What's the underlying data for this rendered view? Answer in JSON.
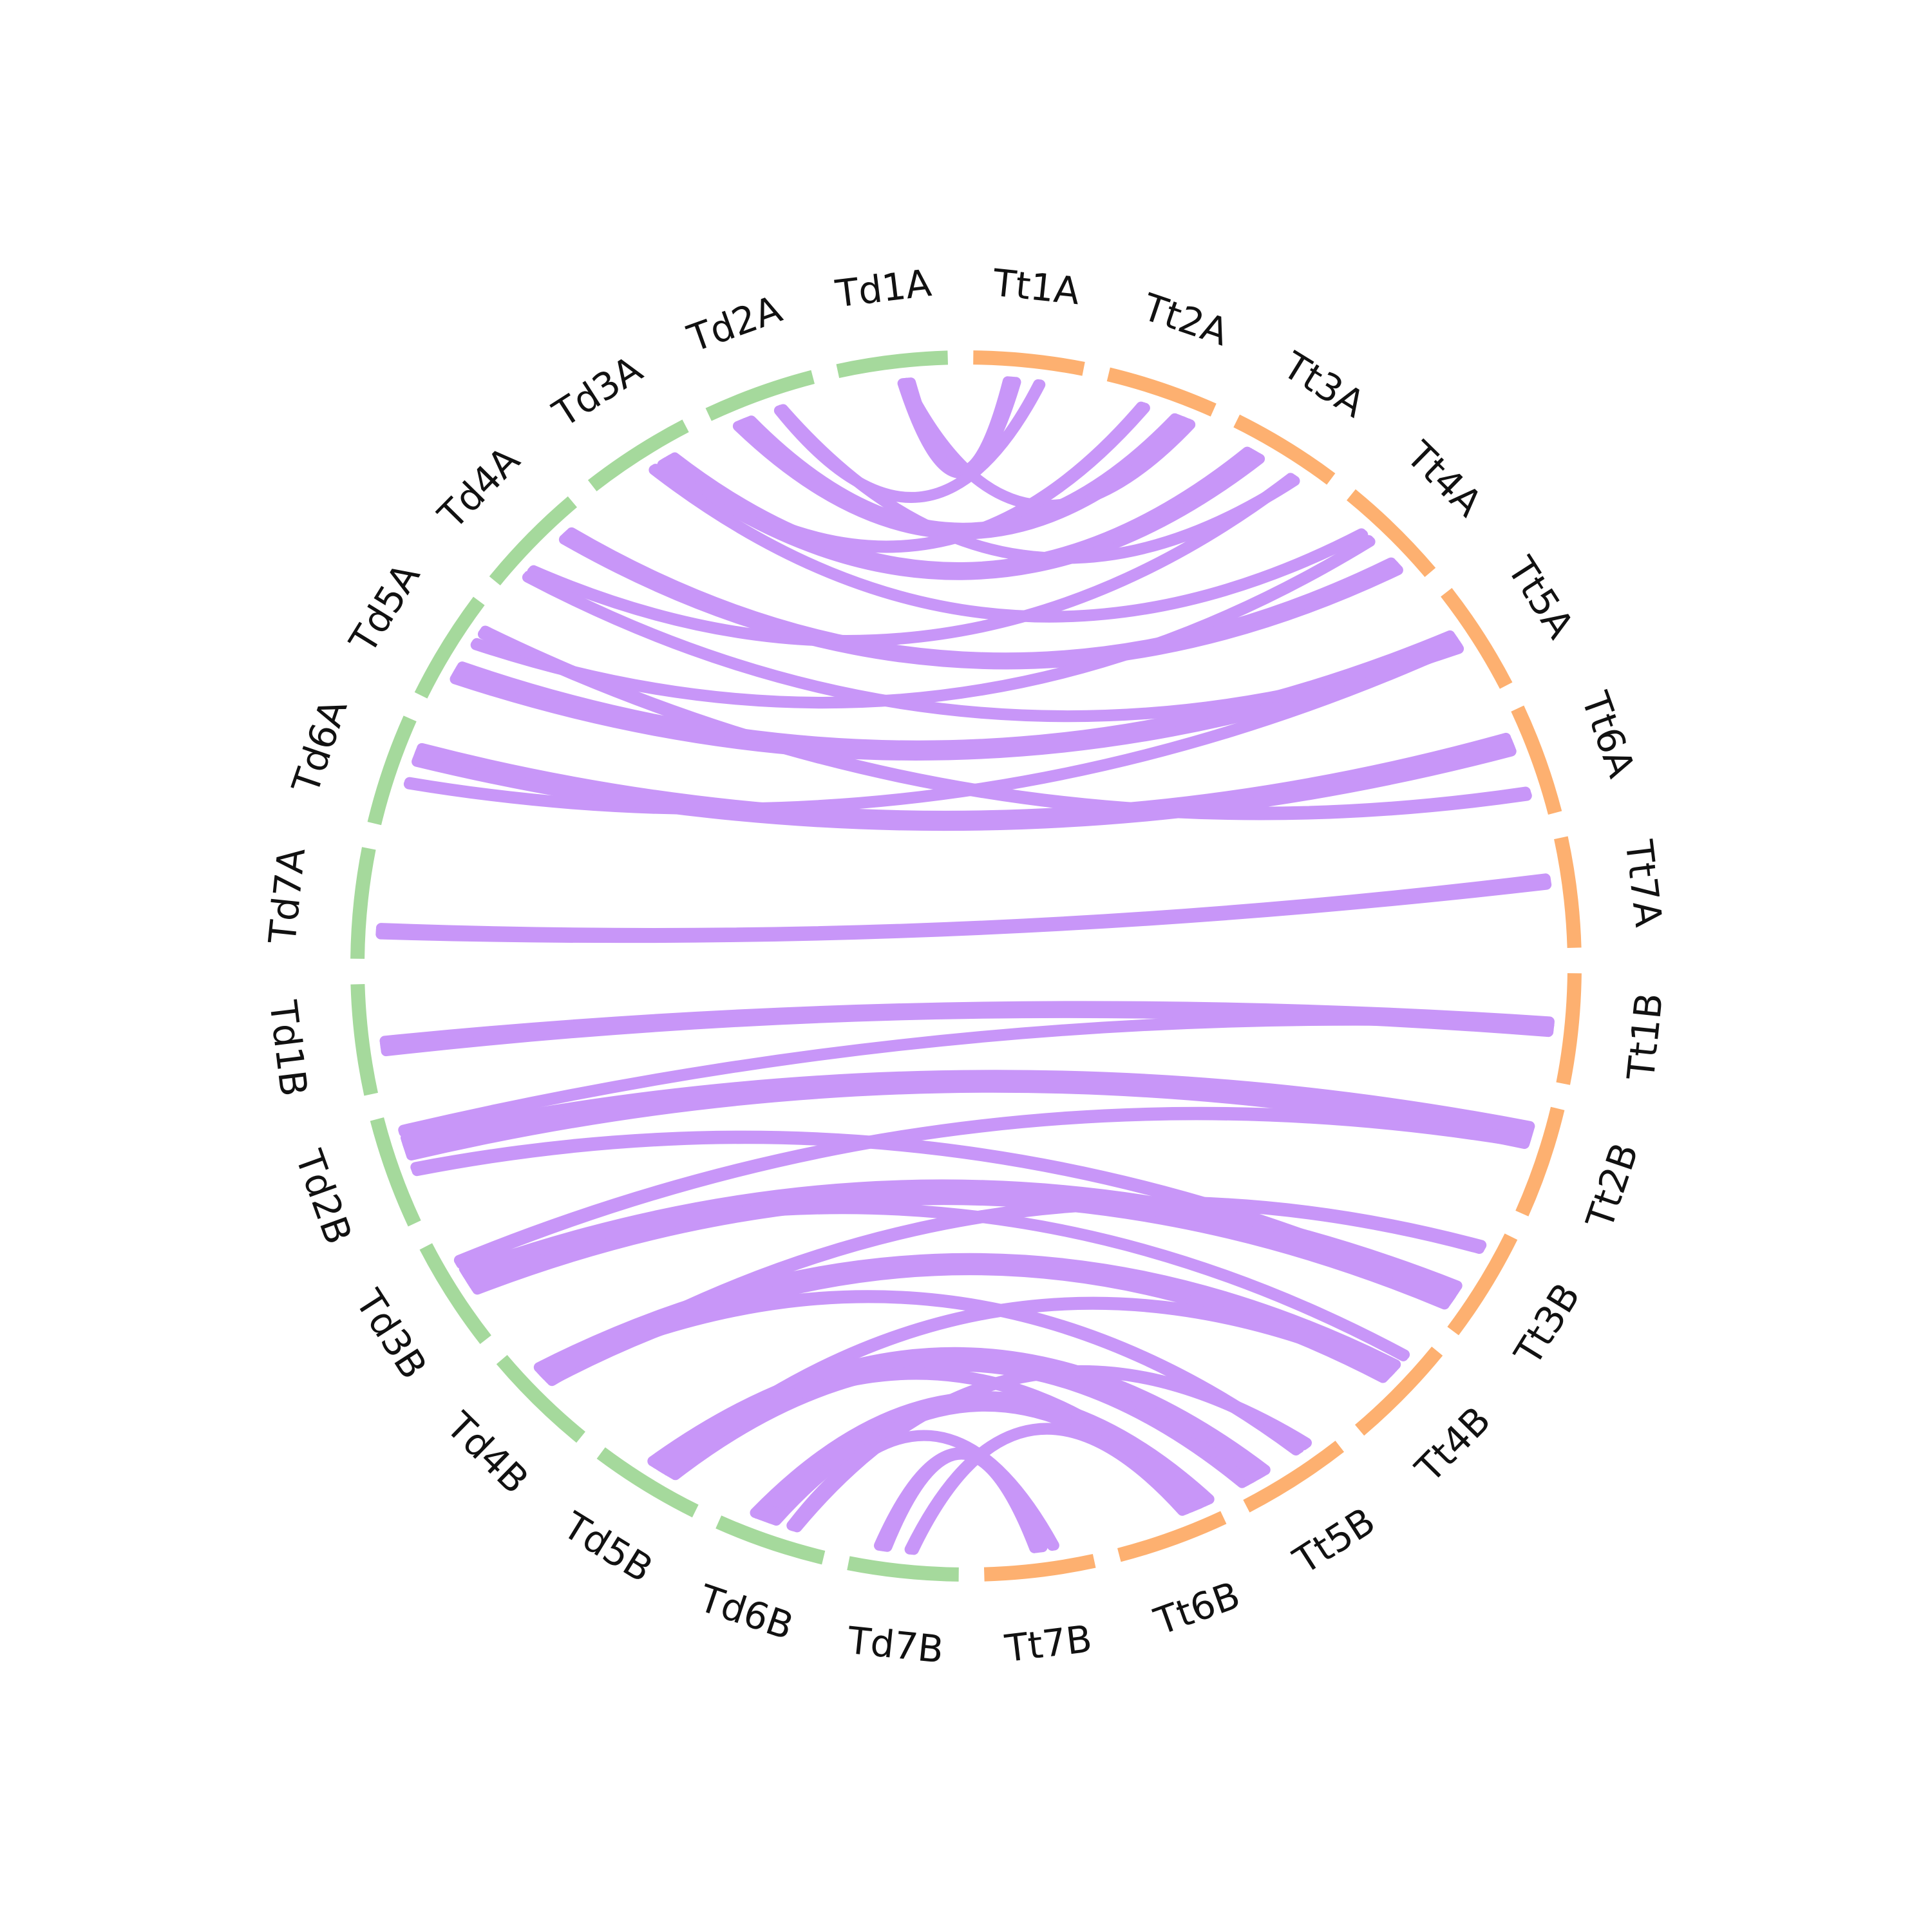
{
  "colors": {
    "groupA": "#a5d99c",
    "groupB": "#fdb070",
    "link": "#c896f8",
    "label": "#111111",
    "background": "#ffffff"
  },
  "chromosomes": [
    {
      "id": "Tt1A",
      "group": "Tt"
    },
    {
      "id": "Tt2A",
      "group": "Tt"
    },
    {
      "id": "Tt3A",
      "group": "Tt"
    },
    {
      "id": "Tt4A",
      "group": "Tt"
    },
    {
      "id": "Tt5A",
      "group": "Tt"
    },
    {
      "id": "Tt6A",
      "group": "Tt"
    },
    {
      "id": "Tt7A",
      "group": "Tt"
    },
    {
      "id": "Tt1B",
      "group": "Tt"
    },
    {
      "id": "Tt2B",
      "group": "Tt"
    },
    {
      "id": "Tt3B",
      "group": "Tt"
    },
    {
      "id": "Tt4B",
      "group": "Tt"
    },
    {
      "id": "Tt5B",
      "group": "Tt"
    },
    {
      "id": "Tt6B",
      "group": "Tt"
    },
    {
      "id": "Tt7B",
      "group": "Tt"
    },
    {
      "id": "Td7B",
      "group": "Td"
    },
    {
      "id": "Td6B",
      "group": "Td"
    },
    {
      "id": "Td5B",
      "group": "Td"
    },
    {
      "id": "Td4B",
      "group": "Td"
    },
    {
      "id": "Td3B",
      "group": "Td"
    },
    {
      "id": "Td2B",
      "group": "Td"
    },
    {
      "id": "Td1B",
      "group": "Td"
    },
    {
      "id": "Td7A",
      "group": "Td"
    },
    {
      "id": "Td6A",
      "group": "Td"
    },
    {
      "id": "Td5A",
      "group": "Td"
    },
    {
      "id": "Td4A",
      "group": "Td"
    },
    {
      "id": "Td3A",
      "group": "Td"
    },
    {
      "id": "Td2A",
      "group": "Td"
    },
    {
      "id": "Td1A",
      "group": "Td"
    }
  ],
  "links": [
    [
      "Td1A",
      "Tt1A",
      5
    ],
    [
      "Td1A",
      "Tt2A",
      2
    ],
    [
      "Td2A",
      "Tt1A",
      2
    ],
    [
      "Td2A",
      "Tt2A",
      8
    ],
    [
      "Td2A",
      "Tt3A",
      2
    ],
    [
      "Td3A",
      "Tt2A",
      3
    ],
    [
      "Td3A",
      "Tt3A",
      8
    ],
    [
      "Td3A",
      "Tt4A",
      2
    ],
    [
      "Td4A",
      "Tt3A",
      2
    ],
    [
      "Td4A",
      "Tt4A",
      6
    ],
    [
      "Td4A",
      "Tt5A",
      2
    ],
    [
      "Td5A",
      "Tt4A",
      2
    ],
    [
      "Td5A",
      "Tt5A",
      8
    ],
    [
      "Td5A",
      "Tt6A",
      3
    ],
    [
      "Td6A",
      "Tt5A",
      2
    ],
    [
      "Td6A",
      "Tt6A",
      8
    ],
    [
      "Td7A",
      "Tt7A",
      4
    ],
    [
      "Td1B",
      "Tt1B",
      6
    ],
    [
      "Td2B",
      "Tt1B",
      2
    ],
    [
      "Td2B",
      "Tt2B",
      10
    ],
    [
      "Td2B",
      "Tt3B",
      3
    ],
    [
      "Td3B",
      "Tt2B",
      3
    ],
    [
      "Td3B",
      "Tt3B",
      12
    ],
    [
      "Td3B",
      "Tt4B",
      2
    ],
    [
      "Td4B",
      "Tt3B",
      3
    ],
    [
      "Td4B",
      "Tt4B",
      10
    ],
    [
      "Td4B",
      "Tt5B",
      3
    ],
    [
      "Td5B",
      "Tt4B",
      3
    ],
    [
      "Td5B",
      "Tt5B",
      14
    ],
    [
      "Td5B",
      "Tt6B",
      3
    ],
    [
      "Td6B",
      "Tt5B",
      3
    ],
    [
      "Td6B",
      "Tt6B",
      12
    ],
    [
      "Td6B",
      "Tt7B",
      2
    ],
    [
      "Td7B",
      "Tt6B",
      3
    ],
    [
      "Td7B",
      "Tt7B",
      5
    ]
  ]
}
